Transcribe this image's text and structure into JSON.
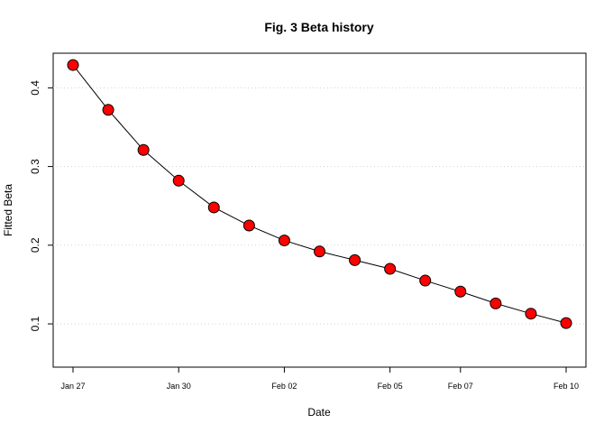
{
  "chart_data": {
    "type": "line",
    "title": "Fig. 3 Beta history",
    "xlabel": "Date",
    "ylabel": "Fitted Beta",
    "x": [
      "2021-01-27",
      "2021-01-28",
      "2021-01-29",
      "2021-01-30",
      "2021-01-31",
      "2021-02-01",
      "2021-02-02",
      "2021-02-03",
      "2021-02-04",
      "2021-02-05",
      "2021-02-06",
      "2021-02-07",
      "2021-02-08",
      "2021-02-09",
      "2021-02-10"
    ],
    "series": [
      {
        "values": [
          0.429,
          0.372,
          0.321,
          0.282,
          0.248,
          0.225,
          0.206,
          0.192,
          0.181,
          0.17,
          0.155,
          0.141,
          0.126,
          0.113,
          0.101
        ]
      }
    ],
    "xticks": [
      "Jan 27",
      "Jan 30",
      "Feb 02",
      "Feb 05",
      "Feb 07",
      "Feb 10"
    ],
    "xtick_dates": [
      "2021-01-27",
      "2021-01-30",
      "2021-02-02",
      "2021-02-05",
      "2021-02-07",
      "2021-02-10"
    ],
    "yticks": [
      0.1,
      0.2,
      0.3,
      0.4
    ],
    "ylim": [
      0.045,
      0.444
    ],
    "xlim": [
      "2021-01-27",
      "2021-02-10"
    ],
    "grid": "horizontal dotted",
    "line_color": "#000000",
    "marker_fill": "#ff0000",
    "marker_edge": "#000000",
    "gridline_color": "#d3d3d3"
  }
}
